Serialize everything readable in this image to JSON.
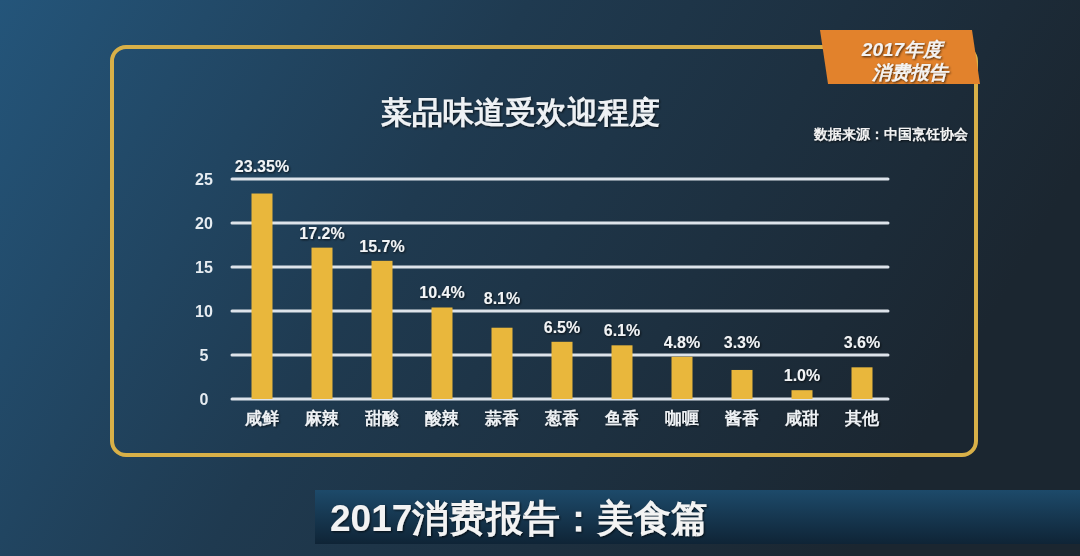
{
  "chart_data": {
    "type": "bar",
    "title": "菜品味道受欢迎程度",
    "annotations": [
      "数据来源：中国烹饪协会",
      "2017年度",
      "消费报告",
      "2017消费报告：美食篇"
    ],
    "categories": [
      "咸鲜",
      "麻辣",
      "甜酸",
      "酸辣",
      "蒜香",
      "葱香",
      "鱼香",
      "咖喱",
      "酱香",
      "咸甜",
      "其他"
    ],
    "values": [
      23.35,
      17.2,
      15.7,
      10.4,
      8.1,
      6.5,
      6.1,
      4.8,
      3.3,
      1.0,
      3.6
    ],
    "value_labels": [
      "23.35%",
      "17.2%",
      "15.7%",
      "10.4%",
      "8.1%",
      "6.5%",
      "6.1%",
      "4.8%",
      "3.3%",
      "1.0%",
      "3.6%"
    ],
    "color": "#e9b73c",
    "ylim": [
      0,
      25
    ],
    "yticks": [
      0,
      5,
      10,
      15,
      20,
      25
    ],
    "grid": "y"
  }
}
